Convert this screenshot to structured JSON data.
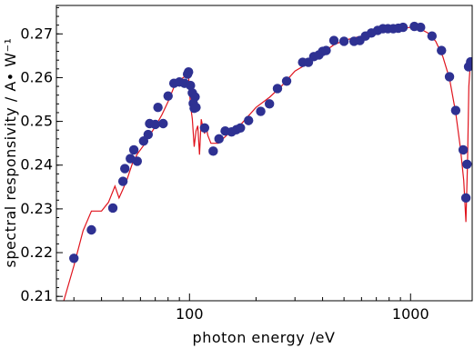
{
  "chart_data": {
    "type": "scatter",
    "xlabel": "photon energy /eV",
    "ylabel": "spectral responsivity / A• W⁻¹",
    "xscale": "log",
    "xlim": [
      25,
      1900
    ],
    "ylim": [
      0.209,
      0.2765
    ],
    "grid": false,
    "x_ticks": [
      {
        "value": 100,
        "label": "100"
      },
      {
        "value": 1000,
        "label": "1000"
      }
    ],
    "y_ticks": [
      {
        "value": 0.21,
        "label": "0.21"
      },
      {
        "value": 0.22,
        "label": "0.22"
      },
      {
        "value": 0.23,
        "label": "0.23"
      },
      {
        "value": 0.24,
        "label": "0.24"
      },
      {
        "value": 0.25,
        "label": "0.25"
      },
      {
        "value": 0.26,
        "label": "0.26"
      },
      {
        "value": 0.27,
        "label": "0.27"
      }
    ],
    "colors": {
      "points": "#2e3192",
      "line": "#e0141e"
    },
    "series": [
      {
        "kind": "line",
        "x": [
          27,
          30,
          33,
          36,
          40,
          43,
          46,
          48,
          50,
          52,
          55,
          58,
          62,
          66,
          70,
          75,
          80,
          85,
          90,
          95,
          99,
          101,
          103,
          105,
          107,
          109,
          111,
          113,
          115,
          117,
          119,
          121,
          125,
          135,
          150,
          170,
          200,
          230,
          260,
          300,
          350,
          400,
          450,
          500,
          600,
          700,
          800,
          900,
          1000,
          1100,
          1200,
          1300,
          1400,
          1500,
          1600,
          1680,
          1740,
          1780,
          1810,
          1835,
          1860,
          1890
        ],
        "y": [
          0.209,
          0.217,
          0.225,
          0.2295,
          0.2295,
          0.2315,
          0.2352,
          0.2325,
          0.2345,
          0.2365,
          0.2402,
          0.2425,
          0.2445,
          0.2468,
          0.2488,
          0.2515,
          0.2545,
          0.2578,
          0.2594,
          0.2602,
          0.2605,
          0.2538,
          0.2505,
          0.2442,
          0.2478,
          0.249,
          0.2424,
          0.2505,
          0.2486,
          0.2472,
          0.2488,
          0.2468,
          0.245,
          0.245,
          0.2472,
          0.2492,
          0.2532,
          0.2555,
          0.258,
          0.2615,
          0.2635,
          0.2657,
          0.2675,
          0.2685,
          0.2695,
          0.2703,
          0.2708,
          0.2712,
          0.2715,
          0.2712,
          0.2702,
          0.2683,
          0.2648,
          0.2598,
          0.252,
          0.244,
          0.2365,
          0.227,
          0.2405,
          0.258,
          0.2625,
          0.2635
        ]
      },
      {
        "kind": "scatter",
        "x": [
          30,
          36,
          45,
          50,
          51,
          54,
          56,
          58,
          62,
          65,
          66,
          70,
          72,
          76,
          80,
          85,
          90,
          95,
          98,
          99,
          101,
          103,
          104,
          105,
          106,
          107,
          117,
          128,
          136,
          145,
          155,
          163,
          170,
          185,
          210,
          230,
          250,
          275,
          325,
          345,
          365,
          385,
          400,
          415,
          450,
          500,
          555,
          590,
          625,
          665,
          710,
          750,
          790,
          835,
          880,
          925,
          1040,
          1110,
          1250,
          1380,
          1500,
          1600,
          1730,
          1780,
          1800,
          1830,
          1870
        ],
        "y": [
          0.2187,
          0.2252,
          0.2302,
          0.2363,
          0.2392,
          0.2415,
          0.2435,
          0.2409,
          0.2455,
          0.247,
          0.2495,
          0.2493,
          0.2532,
          0.2495,
          0.2558,
          0.2587,
          0.259,
          0.2587,
          0.2608,
          0.2613,
          0.2582,
          0.2565,
          0.2541,
          0.253,
          0.2556,
          0.2532,
          0.2485,
          0.2432,
          0.246,
          0.2478,
          0.2476,
          0.2481,
          0.2485,
          0.2502,
          0.2523,
          0.254,
          0.2575,
          0.2592,
          0.2635,
          0.2635,
          0.2648,
          0.2652,
          0.266,
          0.2662,
          0.2685,
          0.2683,
          0.2683,
          0.2685,
          0.2695,
          0.2702,
          0.2708,
          0.2712,
          0.2712,
          0.2712,
          0.2713,
          0.2715,
          0.2717,
          0.2715,
          0.2695,
          0.2662,
          0.2602,
          0.2525,
          0.2435,
          0.2325,
          0.2402,
          0.2625,
          0.2636
        ]
      }
    ]
  }
}
